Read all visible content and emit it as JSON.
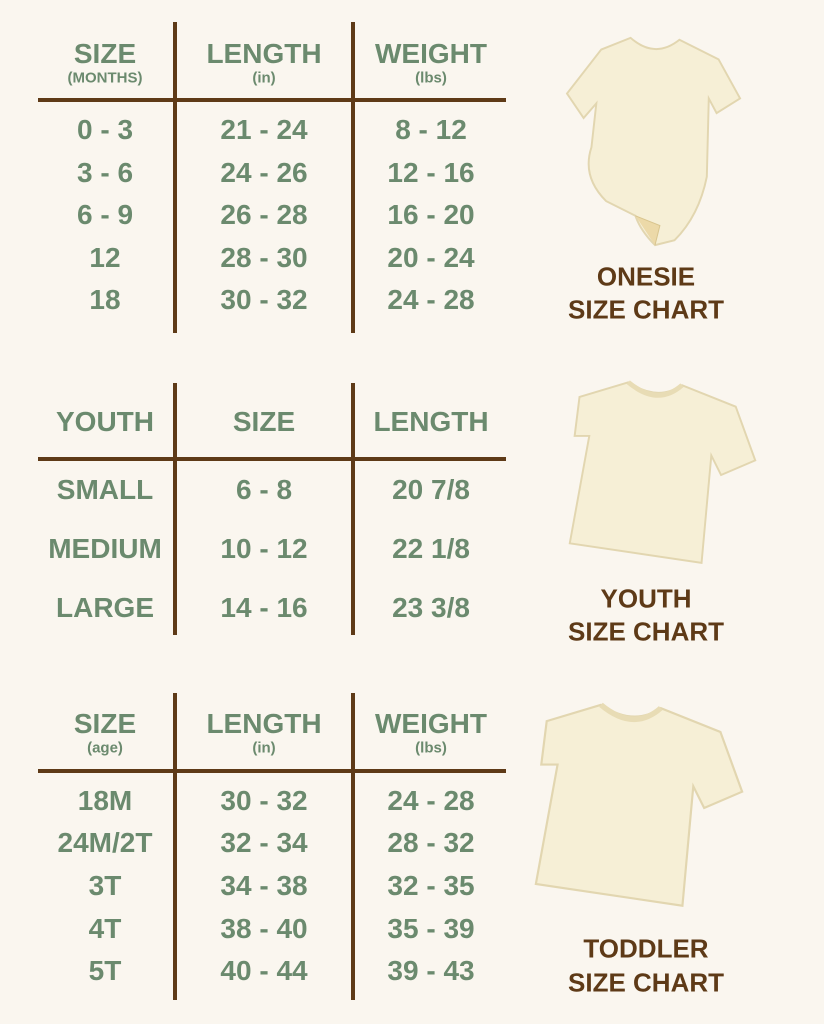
{
  "colors": {
    "text": "#6b8a6e",
    "lines": "#5e3a17",
    "background": "#faf6ef",
    "garment": "#f6efd6"
  },
  "tables": [
    {
      "name": "onesie",
      "headers": [
        {
          "title": "SIZE",
          "sub": "(MONTHS)"
        },
        {
          "title": "LENGTH",
          "sub": "(in)"
        },
        {
          "title": "WEIGHT",
          "sub": "(lbs)"
        }
      ],
      "rows": [
        [
          "0 - 3",
          "21 - 24",
          "8 - 12"
        ],
        [
          "3 - 6",
          "24 - 26",
          "12 - 16"
        ],
        [
          "6 - 9",
          "26 - 28",
          "16 - 20"
        ],
        [
          "12",
          "28 - 30",
          "20 - 24"
        ],
        [
          "18",
          "30 - 32",
          "24 - 28"
        ]
      ],
      "caption": [
        "ONESIE",
        "SIZE CHART"
      ],
      "image": "onesie"
    },
    {
      "name": "youth",
      "headers": [
        {
          "title": "YOUTH"
        },
        {
          "title": "SIZE"
        },
        {
          "title": "LENGTH"
        }
      ],
      "rows": [
        [
          "SMALL",
          "6 - 8",
          "20 7/8"
        ],
        [
          "MEDIUM",
          "10 - 12",
          "22 1/8"
        ],
        [
          "LARGE",
          "14 - 16",
          "23 3/8"
        ]
      ],
      "caption": [
        "YOUTH",
        "SIZE CHART"
      ],
      "image": "t-shirt"
    },
    {
      "name": "toddler",
      "headers": [
        {
          "title": "SIZE",
          "sub": "(age)"
        },
        {
          "title": "LENGTH",
          "sub": "(in)"
        },
        {
          "title": "WEIGHT",
          "sub": "(lbs)"
        }
      ],
      "rows": [
        [
          "18M",
          "30 - 32",
          "24 - 28"
        ],
        [
          "24M/2T",
          "32 - 34",
          "28 - 32"
        ],
        [
          "3T",
          "34 - 38",
          "32 - 35"
        ],
        [
          "4T",
          "38 - 40",
          "35 - 39"
        ],
        [
          "5T",
          "40 - 44",
          "39 - 43"
        ]
      ],
      "caption": [
        "TODDLER",
        "SIZE CHART"
      ],
      "image": "t-shirt"
    }
  ]
}
